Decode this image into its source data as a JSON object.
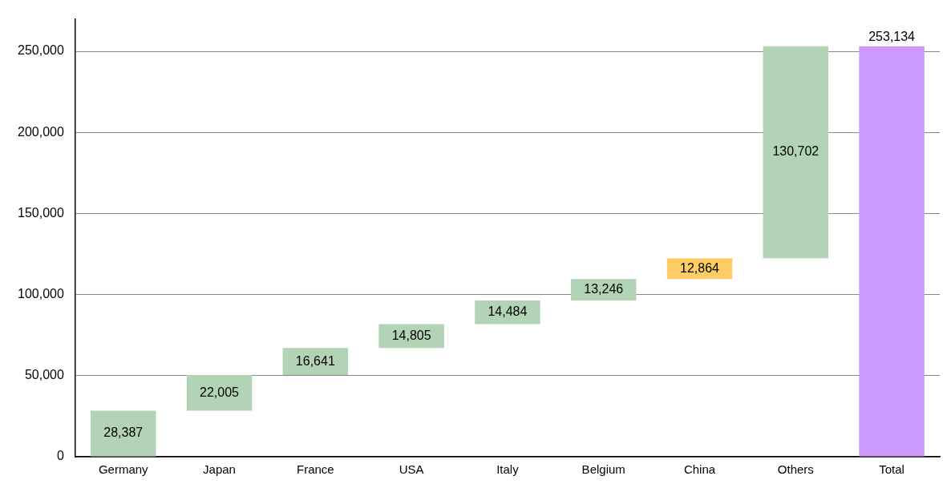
{
  "chart_data": {
    "type": "bar",
    "categories": [
      "Germany",
      "Japan",
      "France",
      "USA",
      "Italy",
      "Belgium",
      "China",
      "Others",
      "Total"
    ],
    "values": [
      28387,
      22005,
      16641,
      14805,
      14484,
      13246,
      12864,
      130702,
      253134
    ],
    "base": [
      0,
      28387,
      50392,
      67033,
      81838,
      96322,
      109568,
      122432,
      0
    ],
    "colors": [
      "#b2d3b5",
      "#b2d3b5",
      "#b2d3b5",
      "#b2d3b5",
      "#b2d3b5",
      "#b2d3b5",
      "#ffcc66",
      "#b2d3b5",
      "#cc99ff"
    ],
    "value_labels": [
      "28,387",
      "22,005",
      "16,641",
      "14,805",
      "14,484",
      "13,246",
      "12,864",
      "130,702",
      "253,134"
    ],
    "ylim": [
      0,
      270000
    ],
    "yticks": [
      0,
      {
        "value": 50000,
        "label": "50,000"
      },
      {
        "value": 100000,
        "label": "100,000"
      },
      {
        "value": 150000,
        "label": "150,000"
      },
      {
        "value": 200000,
        "label": "200,000"
      },
      {
        "value": 250000,
        "label": "250,000"
      }
    ],
    "grid": "y",
    "legend": false
  }
}
